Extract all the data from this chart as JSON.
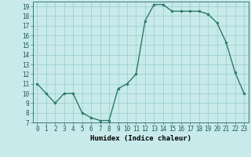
{
  "x": [
    0,
    1,
    2,
    3,
    4,
    5,
    6,
    7,
    8,
    9,
    10,
    11,
    12,
    13,
    14,
    15,
    16,
    17,
    18,
    19,
    20,
    21,
    22,
    23
  ],
  "y": [
    11,
    10,
    9,
    10,
    10,
    8,
    7.5,
    7.2,
    7.2,
    10.5,
    11,
    12,
    17.5,
    19.2,
    19.2,
    18.5,
    18.5,
    18.5,
    18.5,
    18.2,
    17.3,
    15.3,
    12.2,
    10
  ],
  "line_color": "#2d7a6a",
  "marker": "o",
  "marker_size": 2.0,
  "bg_color": "#c8eaea",
  "grid_color": "#96cccc",
  "xlabel": "Humidex (Indice chaleur)",
  "ylim": [
    7,
    19.5
  ],
  "xlim": [
    -0.5,
    23.5
  ],
  "yticks": [
    7,
    8,
    9,
    10,
    11,
    12,
    13,
    14,
    15,
    16,
    17,
    18,
    19
  ],
  "xticks": [
    0,
    1,
    2,
    3,
    4,
    5,
    6,
    7,
    8,
    9,
    10,
    11,
    12,
    13,
    14,
    15,
    16,
    17,
    18,
    19,
    20,
    21,
    22,
    23
  ],
  "xlabel_fontsize": 6.5,
  "tick_fontsize": 5.5,
  "linewidth": 1.0
}
